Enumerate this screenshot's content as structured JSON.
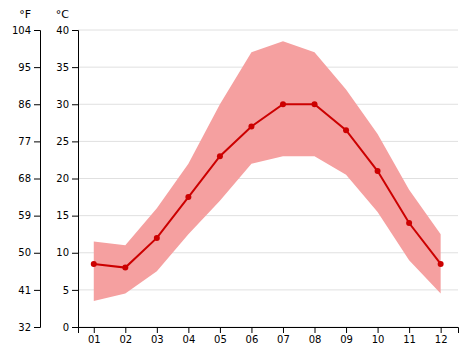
{
  "chart_data": {
    "type": "line",
    "x": [
      1,
      2,
      3,
      4,
      5,
      6,
      7,
      8,
      9,
      10,
      11,
      12
    ],
    "xlim": [
      0.5,
      12.55
    ],
    "xticks": [
      {
        "value": 1,
        "label": "01"
      },
      {
        "value": 2,
        "label": "02"
      },
      {
        "value": 3,
        "label": "03"
      },
      {
        "value": 4,
        "label": "04"
      },
      {
        "value": 5,
        "label": "05"
      },
      {
        "value": 6,
        "label": "06"
      },
      {
        "value": 7,
        "label": "07"
      },
      {
        "value": 8,
        "label": "08"
      },
      {
        "value": 9,
        "label": "09"
      },
      {
        "value": 10,
        "label": "10"
      },
      {
        "value": 11,
        "label": "11"
      },
      {
        "value": 12,
        "label": "12"
      }
    ],
    "y_label": "°C",
    "ylim": [
      0,
      40
    ],
    "yticks": [
      0,
      5,
      10,
      15,
      20,
      25,
      30,
      35,
      40
    ],
    "y2_label": "°F",
    "y2lim": [
      32,
      104
    ],
    "y2ticks": [
      32,
      41,
      50,
      59,
      68,
      77,
      86,
      95,
      104
    ],
    "grid": true,
    "series": [
      {
        "type": "area",
        "color": "#f5a0a0",
        "low": [
          3.5,
          4.5,
          7.5,
          12.5,
          17.0,
          22.0,
          23.0,
          23.0,
          20.5,
          15.5,
          9.0,
          4.5
        ],
        "high": [
          11.5,
          11.0,
          16.0,
          22.0,
          30.0,
          37.0,
          38.5,
          37.0,
          32.0,
          26.0,
          18.5,
          12.5
        ]
      },
      {
        "type": "line",
        "color": "#cc0000",
        "marker": "circle",
        "values": [
          8.5,
          8.0,
          12.0,
          17.5,
          23.0,
          27.0,
          30.0,
          30.0,
          26.5,
          21.0,
          14.0,
          8.5
        ]
      }
    ]
  }
}
